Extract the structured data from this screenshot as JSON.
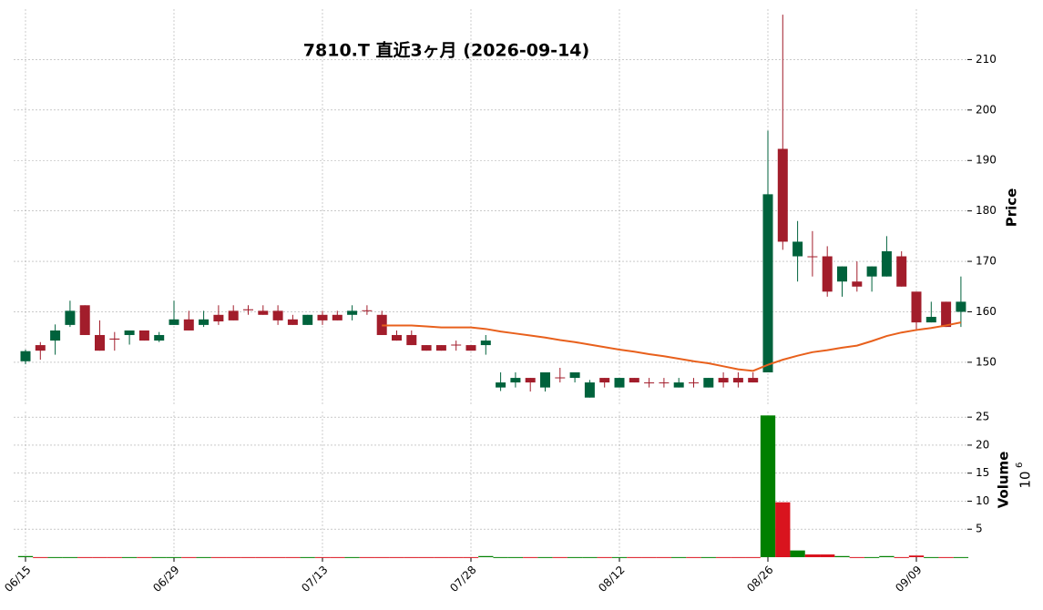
{
  "chart_data": {
    "type": "candlestick",
    "title": "7810.T  直近3ヶ月  (2026-09-14)",
    "categories": [
      "06/15",
      null,
      null,
      null,
      null,
      null,
      null,
      null,
      null,
      null,
      "06/29",
      null,
      null,
      null,
      null,
      null,
      null,
      null,
      null,
      null,
      "07/13",
      null,
      null,
      null,
      null,
      null,
      null,
      null,
      null,
      null,
      "07/28",
      null,
      null,
      null,
      null,
      null,
      null,
      null,
      null,
      null,
      "08/12",
      null,
      null,
      null,
      null,
      null,
      null,
      null,
      null,
      null,
      "08/26",
      null,
      null,
      null,
      null,
      null,
      null,
      null,
      null,
      null,
      "09/09",
      null,
      null,
      null
    ],
    "open": [
      150.2,
      153.4,
      154.3,
      157.4,
      161.3,
      155.4,
      154.7,
      155.4,
      156.3,
      154.3,
      157.4,
      158.5,
      157.4,
      159.4,
      160.2,
      160.5,
      160.2,
      160.2,
      158.5,
      157.4,
      159.4,
      159.4,
      159.4,
      160.3,
      159.4,
      155.4,
      155.4,
      153.4,
      153.4,
      153.5,
      153.4,
      153.4,
      145.0,
      146.0,
      146.9,
      145.0,
      147.0,
      146.9,
      143.0,
      146.9,
      145.0,
      146.9,
      146.0,
      146.0,
      145.0,
      146.0,
      145.0,
      146.9,
      146.9,
      146.9,
      148.0,
      192.3,
      171.0,
      171.0,
      171.0,
      166.0,
      166.0,
      167.0,
      167.0,
      171.0,
      164.0,
      157.9,
      162.0,
      160.0
    ],
    "high": [
      152.5,
      154.0,
      157.5,
      162.2,
      161.3,
      158.3,
      156.0,
      156.3,
      156.3,
      156.0,
      162.2,
      160.2,
      160.2,
      161.3,
      161.3,
      161.3,
      161.3,
      161.3,
      159.4,
      159.4,
      160.2,
      160.2,
      161.3,
      161.3,
      160.2,
      156.3,
      156.3,
      153.4,
      153.4,
      154.3,
      153.4,
      155.4,
      148.0,
      148.0,
      146.9,
      148.0,
      148.9,
      148.0,
      146.5,
      146.9,
      146.9,
      146.9,
      146.9,
      146.9,
      146.9,
      146.9,
      146.9,
      148.0,
      148.0,
      148.0,
      195.9,
      218.9,
      178.0,
      176.0,
      173.0,
      169.0,
      170.0,
      169.0,
      175.0,
      172.0,
      164.0,
      162.0,
      162.0,
      167.0
    ],
    "low": [
      149.6,
      150.5,
      151.5,
      157.0,
      155.4,
      152.3,
      152.3,
      153.5,
      154.3,
      154.0,
      157.4,
      156.3,
      157.0,
      157.4,
      158.3,
      159.4,
      159.4,
      157.4,
      157.4,
      157.4,
      157.4,
      158.3,
      158.3,
      159.4,
      155.4,
      154.3,
      153.4,
      152.3,
      152.3,
      152.3,
      152.3,
      151.5,
      144.3,
      145.0,
      144.2,
      144.2,
      146.0,
      146.0,
      143.0,
      145.0,
      145.0,
      146.0,
      145.0,
      145.0,
      145.0,
      145.0,
      145.0,
      145.0,
      145.0,
      146.0,
      148.0,
      172.3,
      166.0,
      167.0,
      163.0,
      163.0,
      164.0,
      164.0,
      167.0,
      165.0,
      156.5,
      157.9,
      157.0,
      157.0
    ],
    "close": [
      152.2,
      152.3,
      156.3,
      160.2,
      155.4,
      152.3,
      154.5,
      156.3,
      154.3,
      155.4,
      158.5,
      156.3,
      158.5,
      158.1,
      158.3,
      160.3,
      159.4,
      158.3,
      157.4,
      159.4,
      158.3,
      158.3,
      160.2,
      160.2,
      155.4,
      154.3,
      153.4,
      152.3,
      152.3,
      153.4,
      152.3,
      154.3,
      146.0,
      146.9,
      146.0,
      148.0,
      146.9,
      148.0,
      146.0,
      146.0,
      146.9,
      146.0,
      145.9,
      145.9,
      146.0,
      145.9,
      146.9,
      146.0,
      146.0,
      146.0,
      183.3,
      173.9,
      173.9,
      170.9,
      164.0,
      169.0,
      165.0,
      169.0,
      172.0,
      165.0,
      157.9,
      159.0,
      157.0,
      162.0
    ],
    "up_color": "#00623c",
    "down_color": "#a21d2b",
    "moving_average": {
      "color": "#e8601c",
      "values": [
        null,
        null,
        null,
        null,
        null,
        null,
        null,
        null,
        null,
        null,
        null,
        null,
        null,
        null,
        null,
        null,
        null,
        null,
        null,
        null,
        null,
        null,
        null,
        null,
        157.3,
        157.3,
        157.3,
        157.1,
        156.9,
        156.9,
        156.9,
        156.6,
        156.1,
        155.7,
        155.3,
        154.9,
        154.4,
        154.0,
        153.5,
        153.0,
        152.5,
        152.1,
        151.6,
        151.2,
        150.7,
        150.2,
        149.8,
        149.2,
        148.6,
        148.3,
        149.5,
        150.5,
        151.3,
        152.0,
        152.4,
        152.9,
        153.3,
        154.2,
        155.2,
        155.9,
        156.4,
        156.8,
        157.3,
        157.9
      ]
    },
    "ylabel": "Price",
    "ylim": [
      141.5,
      220
    ],
    "yticks": [
      150,
      160,
      170,
      180,
      190,
      200,
      210
    ],
    "grid": true,
    "volume": {
      "type": "bar",
      "ylabel": "Volume",
      "scale_base": "10",
      "scale_exponent": "6",
      "up_color": "#008000",
      "down_color": "#d9141e",
      "values": [
        0.2,
        0.02,
        0.02,
        0.02,
        0.02,
        0.02,
        0.02,
        0.02,
        0.02,
        0.02,
        0.02,
        0.02,
        0.02,
        0.02,
        0.02,
        0.02,
        0.02,
        0.02,
        0.02,
        0.02,
        0.02,
        0.02,
        0.02,
        0.02,
        0.02,
        0.02,
        0.02,
        0.02,
        0.02,
        0.02,
        0.02,
        0.2,
        0.02,
        0.02,
        0.02,
        0.02,
        0.02,
        0.02,
        0.02,
        0.02,
        0.02,
        0.02,
        0.02,
        0.02,
        0.02,
        0.02,
        0.02,
        0.02,
        0.02,
        0.02,
        25.3,
        9.8,
        1.2,
        0.5,
        0.5,
        0.2,
        0.02,
        0.02,
        0.2,
        0.02,
        0.3,
        0.02,
        0.02,
        0.02
      ],
      "ylim": [
        0,
        26
      ],
      "yticks": [
        5,
        10,
        15,
        20,
        25
      ]
    }
  }
}
